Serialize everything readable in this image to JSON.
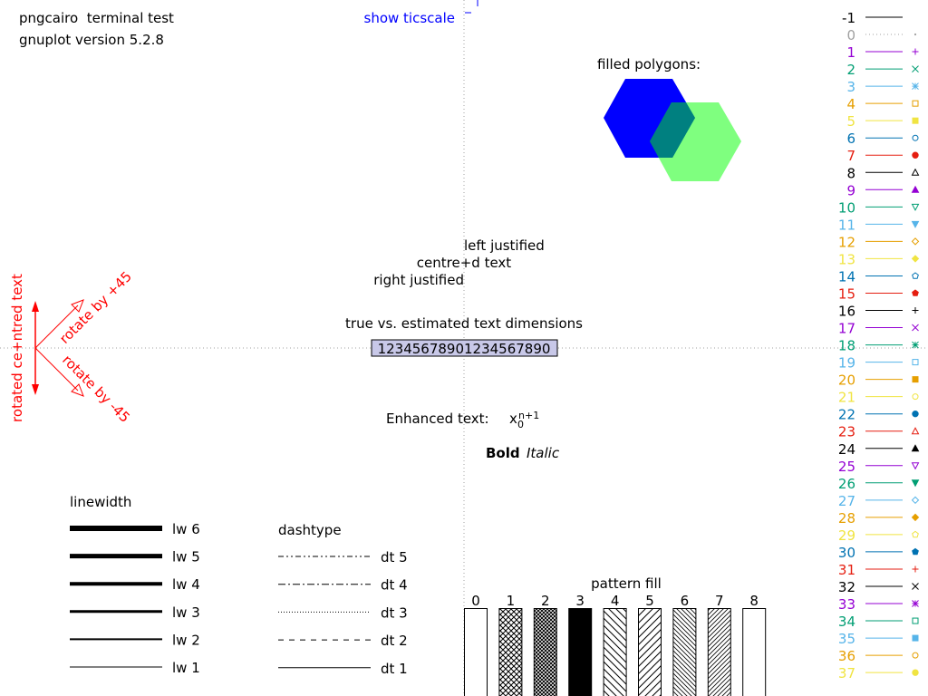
{
  "header": {
    "title_line1": "pngcairo  terminal test",
    "title_line2": "gnuplot version 5.2.8",
    "ticscale_label": "show ticscale"
  },
  "polygons": {
    "label": "filled polygons:",
    "colors": [
      "#0000ff",
      "#00ff00",
      "#008080"
    ]
  },
  "justify": {
    "left": "left justified",
    "centre": "centre+d text",
    "right": "right justified"
  },
  "text_dims": {
    "label": "true vs. estimated text dimensions",
    "sample": "12345678901234567890",
    "box_fill": "#c8c8e8"
  },
  "rotated": {
    "vertical": "rotated ce+ntred text",
    "plus45": "rotate by +45",
    "minus45": "rotate by -45",
    "color": "#ff0000"
  },
  "enhanced": {
    "label": "Enhanced text:",
    "base": "x",
    "sub": "0",
    "sup": "n+1",
    "bold": "Bold",
    "italic": "Italic"
  },
  "linewidth": {
    "title": "linewidth",
    "items": [
      {
        "label": "lw 6",
        "width": 6
      },
      {
        "label": "lw 5",
        "width": 5
      },
      {
        "label": "lw 4",
        "width": 4
      },
      {
        "label": "lw 3",
        "width": 3
      },
      {
        "label": "lw 2",
        "width": 2
      },
      {
        "label": "lw 1",
        "width": 1
      }
    ]
  },
  "dashtype": {
    "title": "dashtype",
    "items": [
      {
        "label": "dt 5",
        "dash": "6 3 2 3 2 3"
      },
      {
        "label": "dt 4",
        "dash": "8 3 2 3"
      },
      {
        "label": "dt 3",
        "dash": "1 2"
      },
      {
        "label": "dt 2",
        "dash": "6 6"
      },
      {
        "label": "dt 1",
        "dash": "none"
      }
    ]
  },
  "pattern_fill": {
    "title": "pattern fill",
    "labels": [
      "0",
      "1",
      "2",
      "3",
      "4",
      "5",
      "6",
      "7",
      "8"
    ]
  },
  "chart_data": {
    "type": "table",
    "legend_placement": "right",
    "linetypes": [
      {
        "label": "-1",
        "color": "#000000",
        "marker": "none",
        "dotted": false
      },
      {
        "label": "0",
        "color": "#a0a0a0",
        "marker": "dot",
        "dotted": true
      },
      {
        "label": "1",
        "color": "#9400d3",
        "marker": "plus"
      },
      {
        "label": "2",
        "color": "#009e73",
        "marker": "cross"
      },
      {
        "label": "3",
        "color": "#56b4e9",
        "marker": "star"
      },
      {
        "label": "4",
        "color": "#e69f00",
        "marker": "square"
      },
      {
        "label": "5",
        "color": "#f0e442",
        "marker": "filled-square"
      },
      {
        "label": "6",
        "color": "#0072b2",
        "marker": "circle"
      },
      {
        "label": "7",
        "color": "#e51e10",
        "marker": "filled-circle"
      },
      {
        "label": "8",
        "color": "#000000",
        "marker": "triangle"
      },
      {
        "label": "9",
        "color": "#9400d3",
        "marker": "filled-triangle"
      },
      {
        "label": "10",
        "color": "#009e73",
        "marker": "inv-triangle"
      },
      {
        "label": "11",
        "color": "#56b4e9",
        "marker": "filled-inv-triangle"
      },
      {
        "label": "12",
        "color": "#e69f00",
        "marker": "diamond"
      },
      {
        "label": "13",
        "color": "#f0e442",
        "marker": "filled-diamond"
      },
      {
        "label": "14",
        "color": "#0072b2",
        "marker": "pentagon"
      },
      {
        "label": "15",
        "color": "#e51e10",
        "marker": "filled-pentagon"
      },
      {
        "label": "16",
        "color": "#000000",
        "marker": "plus"
      },
      {
        "label": "17",
        "color": "#9400d3",
        "marker": "cross"
      },
      {
        "label": "18",
        "color": "#009e73",
        "marker": "star"
      },
      {
        "label": "19",
        "color": "#56b4e9",
        "marker": "square"
      },
      {
        "label": "20",
        "color": "#e69f00",
        "marker": "filled-square"
      },
      {
        "label": "21",
        "color": "#f0e442",
        "marker": "circle"
      },
      {
        "label": "22",
        "color": "#0072b2",
        "marker": "filled-circle"
      },
      {
        "label": "23",
        "color": "#e51e10",
        "marker": "triangle"
      },
      {
        "label": "24",
        "color": "#000000",
        "marker": "filled-triangle"
      },
      {
        "label": "25",
        "color": "#9400d3",
        "marker": "inv-triangle"
      },
      {
        "label": "26",
        "color": "#009e73",
        "marker": "filled-inv-triangle"
      },
      {
        "label": "27",
        "color": "#56b4e9",
        "marker": "diamond"
      },
      {
        "label": "28",
        "color": "#e69f00",
        "marker": "filled-diamond"
      },
      {
        "label": "29",
        "color": "#f0e442",
        "marker": "pentagon"
      },
      {
        "label": "30",
        "color": "#0072b2",
        "marker": "filled-pentagon"
      },
      {
        "label": "31",
        "color": "#e51e10",
        "marker": "plus"
      },
      {
        "label": "32",
        "color": "#000000",
        "marker": "cross"
      },
      {
        "label": "33",
        "color": "#9400d3",
        "marker": "star"
      },
      {
        "label": "34",
        "color": "#009e73",
        "marker": "square"
      },
      {
        "label": "35",
        "color": "#56b4e9",
        "marker": "filled-square"
      },
      {
        "label": "36",
        "color": "#e69f00",
        "marker": "circle"
      },
      {
        "label": "37",
        "color": "#f0e442",
        "marker": "filled-circle"
      }
    ]
  }
}
